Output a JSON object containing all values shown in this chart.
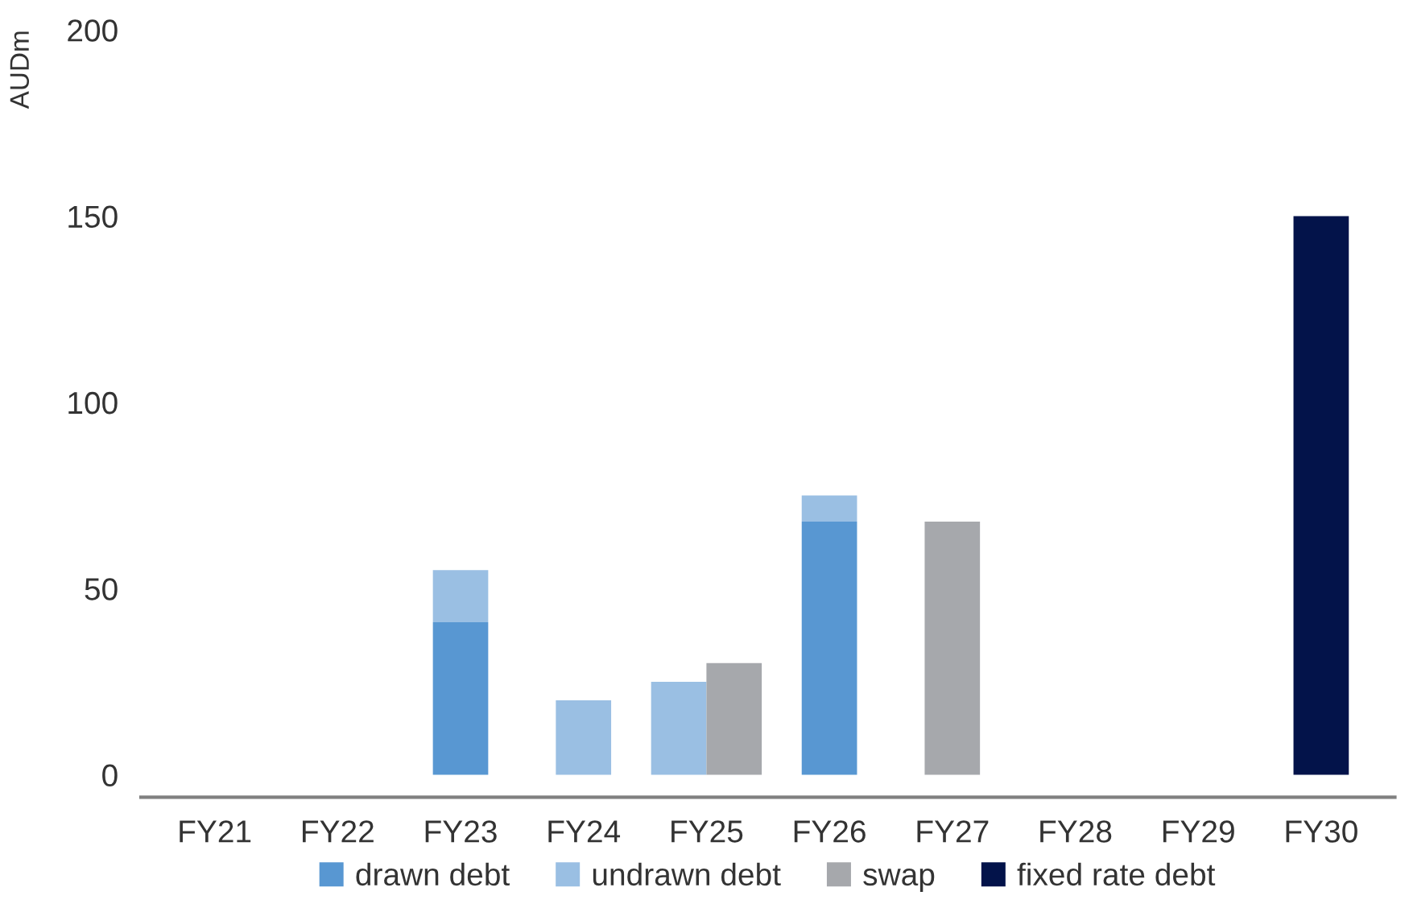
{
  "chart_data": {
    "type": "bar",
    "ylabel": "AUDm",
    "categories": [
      "FY21",
      "FY22",
      "FY23",
      "FY24",
      "FY25",
      "FY26",
      "FY27",
      "FY28",
      "FY29",
      "FY30"
    ],
    "series": [
      {
        "name": "drawn debt",
        "color": "#5897d2",
        "values": [
          null,
          null,
          41,
          null,
          null,
          68,
          null,
          null,
          null,
          null
        ]
      },
      {
        "name": "undrawn debt",
        "color": "#9abfe3",
        "values": [
          null,
          null,
          14,
          20,
          25,
          7,
          null,
          null,
          null,
          null
        ],
        "base": [
          null,
          null,
          41,
          0,
          0,
          68,
          null,
          null,
          null,
          null
        ]
      },
      {
        "name": "swap",
        "color": "#a6a8ac",
        "values": [
          null,
          null,
          null,
          null,
          30,
          null,
          68,
          null,
          null,
          null
        ]
      },
      {
        "name": "fixed rate debt",
        "color": "#03134a",
        "values": [
          null,
          null,
          null,
          null,
          null,
          null,
          null,
          null,
          null,
          150
        ]
      }
    ],
    "ylim": [
      -6,
      200
    ],
    "yticks": [
      0,
      50,
      100,
      150,
      200
    ],
    "grid": false,
    "legend": "bottom"
  }
}
